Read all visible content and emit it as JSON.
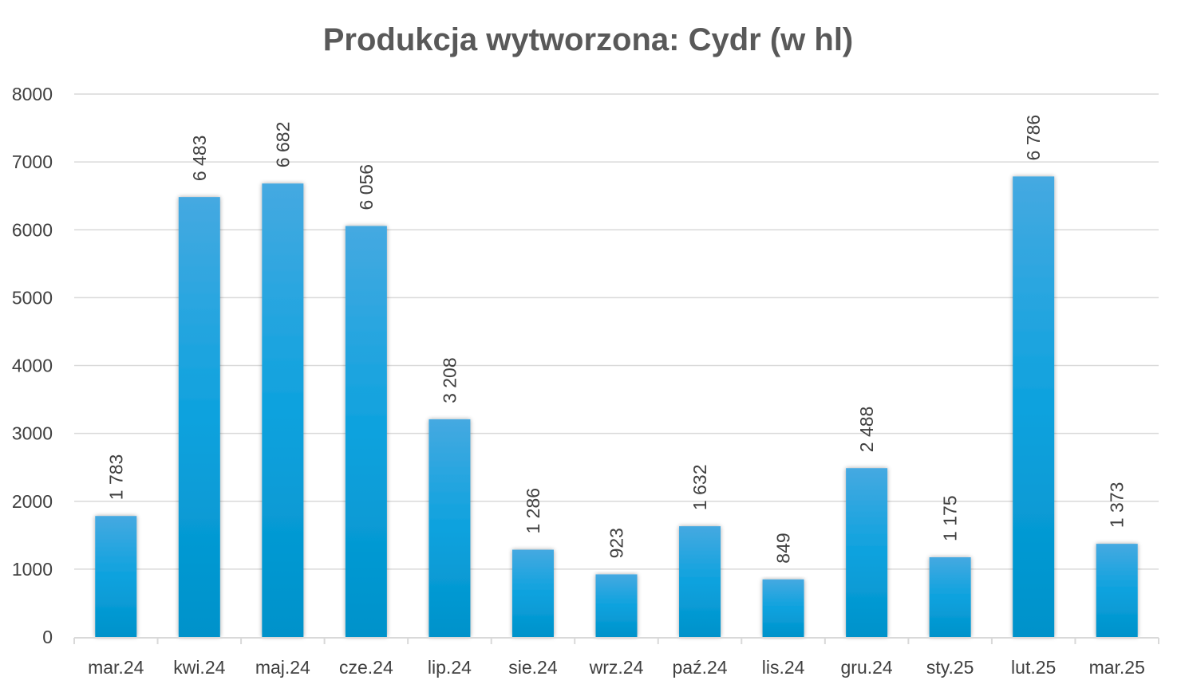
{
  "chart_data": {
    "type": "bar",
    "title": "Produkcja wytworzona: Cydr (w hl)",
    "xlabel": "",
    "ylabel": "",
    "ylim": [
      0,
      8000
    ],
    "yticks": [
      0,
      1000,
      2000,
      3000,
      4000,
      5000,
      6000,
      7000,
      8000
    ],
    "grid": true,
    "categories": [
      "mar.24",
      "kwi.24",
      "maj.24",
      "cze.24",
      "lip.24",
      "sie.24",
      "wrz.24",
      "paź.24",
      "lis.24",
      "gru.24",
      "sty.25",
      "lut.25",
      "mar.25"
    ],
    "values": [
      1783,
      6483,
      6682,
      6056,
      3208,
      1286,
      923,
      1632,
      849,
      2488,
      1175,
      6786,
      1373
    ],
    "data_labels": [
      "1 783",
      "6 483",
      "6 682",
      "6 056",
      "3 208",
      "1 286",
      "923",
      "1 632",
      "849",
      "2 488",
      "1 175",
      "6 786",
      "1 373"
    ],
    "colors": {
      "bar_top": "#45A9E1",
      "bar_mid": "#0DA2DE",
      "bar_bottom": "#0092CA",
      "grid": "#D9D9D9",
      "text": "#404040",
      "title": "#595959"
    }
  }
}
